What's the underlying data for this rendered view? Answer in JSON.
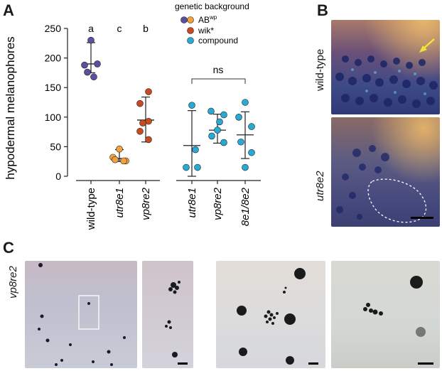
{
  "panels": {
    "a": "A",
    "b": "B",
    "c": "C"
  },
  "panel_b": {
    "top_label": "wild-type",
    "bottom_label": "utr8e2"
  },
  "panel_c": {
    "label": "vp8re2"
  },
  "colors": {
    "ab_purple": "#5b4fa0",
    "ab_orange": "#f2a23a",
    "wik_red": "#c94a1f",
    "compound_cyan": "#29a9d6"
  },
  "chart_data": {
    "type": "scatter",
    "ylabel": "hypodermal melanophores",
    "ylim": [
      0,
      250
    ],
    "yticks": [
      "0",
      "50",
      "100",
      "150",
      "200",
      "250"
    ],
    "categories": [
      "wild-type",
      "utr8e1",
      "vp8re2",
      "utr8e1",
      "vp8re2",
      "8e1/8e2"
    ],
    "category_italic": [
      false,
      true,
      true,
      true,
      true,
      true
    ],
    "significance_letters": [
      "a",
      "c",
      "b"
    ],
    "bracket_label": "ns",
    "legend": {
      "title": "genetic background",
      "entries": [
        "AB",
        "wik*",
        "compound"
      ],
      "ab_superscript": "wp"
    },
    "series": [
      {
        "values": [
          230,
          188,
          190,
          176,
          168
        ],
        "mean": 190,
        "sd_low": 175,
        "sd_high": 226
      },
      {
        "values": [
          46,
          32,
          26,
          28,
          26
        ],
        "mean": 30,
        "sd_low": 25,
        "sd_high": 45
      },
      {
        "values": [
          143,
          123,
          93,
          90,
          76,
          62
        ],
        "mean": 95,
        "sd_low": 58,
        "sd_high": 134
      },
      {
        "values": [
          120,
          45,
          15,
          15
        ],
        "mean": 52,
        "sd_low": 0,
        "sd_high": 111
      },
      {
        "values": [
          110,
          104,
          92,
          78,
          68,
          57
        ],
        "mean": 78,
        "sd_low": 56,
        "sd_high": 105
      },
      {
        "values": [
          125,
          100,
          84,
          58,
          40,
          15
        ],
        "mean": 70,
        "sd_low": 30,
        "sd_high": 109
      }
    ]
  }
}
